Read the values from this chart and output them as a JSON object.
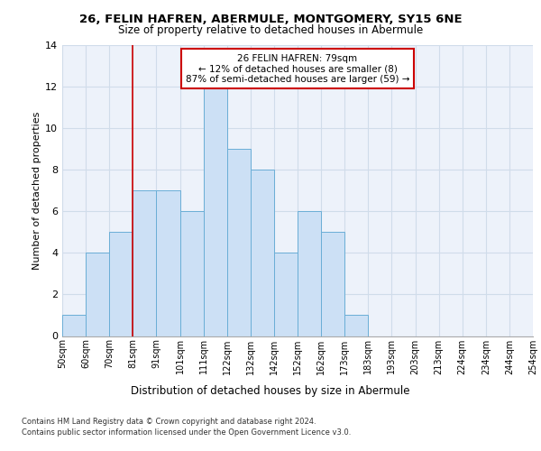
{
  "title1": "26, FELIN HAFREN, ABERMULE, MONTGOMERY, SY15 6NE",
  "title2": "Size of property relative to detached houses in Abermule",
  "xlabel": "Distribution of detached houses by size in Abermule",
  "ylabel": "Number of detached properties",
  "bin_labels": [
    "50sqm",
    "60sqm",
    "70sqm",
    "81sqm",
    "91sqm",
    "101sqm",
    "111sqm",
    "122sqm",
    "132sqm",
    "142sqm",
    "152sqm",
    "162sqm",
    "173sqm",
    "183sqm",
    "193sqm",
    "203sqm",
    "213sqm",
    "224sqm",
    "234sqm",
    "244sqm",
    "254sqm"
  ],
  "bar_heights": [
    1,
    4,
    5,
    7,
    7,
    6,
    12,
    9,
    8,
    4,
    6,
    5,
    1,
    0,
    0,
    0,
    0,
    0,
    0,
    0
  ],
  "bar_color": "#cce0f5",
  "bar_edge_color": "#6aaed6",
  "grid_color": "#d0dcea",
  "annotation_box_text": "26 FELIN HAFREN: 79sqm\n← 12% of detached houses are smaller (8)\n87% of semi-detached houses are larger (59) →",
  "annotation_box_color": "#cc0000",
  "vline_color": "#cc0000",
  "ylim": [
    0,
    14
  ],
  "yticks": [
    0,
    2,
    4,
    6,
    8,
    10,
    12,
    14
  ],
  "footer1": "Contains HM Land Registry data © Crown copyright and database right 2024.",
  "footer2": "Contains public sector information licensed under the Open Government Licence v3.0.",
  "bg_color": "#edf2fa"
}
